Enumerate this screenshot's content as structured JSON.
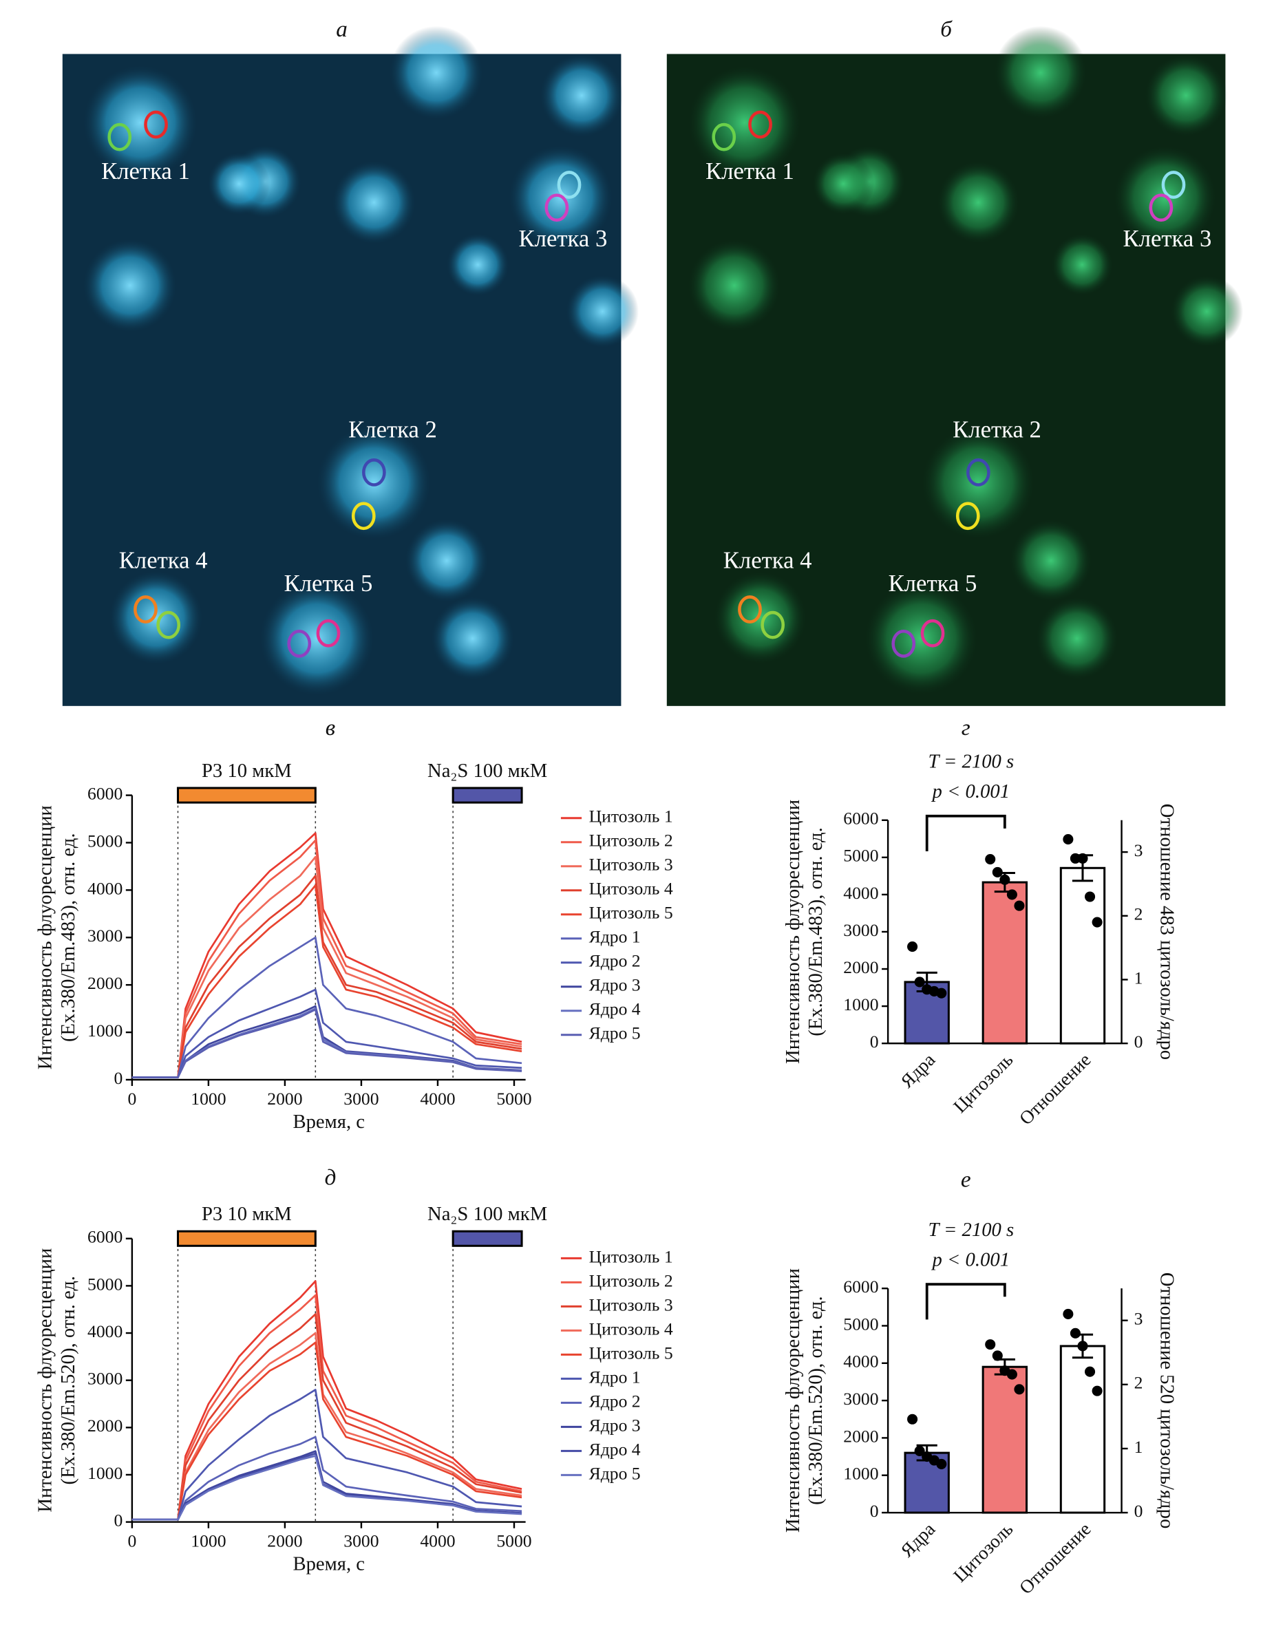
{
  "figure": {
    "panels": [
      {
        "label": "а",
        "cells": [
          "Клетка 1",
          "Клетка 3",
          "Клетка 2",
          "Клетка 4",
          "Клетка 5"
        ]
      },
      {
        "label": "б",
        "cells": [
          "Клетка 1",
          "Клетка 3",
          "Клетка 2",
          "Клетка 4",
          "Клетка 5"
        ]
      }
    ]
  },
  "chart_data": [
    {
      "type": "line",
      "panel_label": "в",
      "y_label": [
        "Интенсивность флуоресценции",
        "(Ex.380/Em.483), отн. ед."
      ],
      "x_label": "Время, с",
      "x": [
        0,
        600,
        700,
        1000,
        1400,
        1800,
        2200,
        2400,
        2500,
        2800,
        3200,
        3600,
        4200,
        4500,
        5100
      ],
      "xlim": [
        0,
        5150
      ],
      "xticks": [
        0,
        1000,
        2000,
        3000,
        4000,
        5000
      ],
      "ylim": [
        0,
        6000
      ],
      "yticks": [
        0,
        1000,
        2000,
        3000,
        4000,
        5000,
        6000
      ],
      "treatments": [
        {
          "label": "Р3 10 мкМ",
          "start": 600,
          "end": 2400,
          "color": "#f28a30"
        },
        {
          "label": "Na₂S 100 мкМ",
          "start": 4200,
          "end": 5100,
          "color": "#5356a8"
        }
      ],
      "series": [
        {
          "name": "Цитозоль 1",
          "color": "#e8392f",
          "values": [
            50,
            50,
            1500,
            2700,
            3700,
            4400,
            4900,
            5200,
            3600,
            2600,
            2300,
            2000,
            1500,
            1000,
            800
          ]
        },
        {
          "name": "Цитозоль 2",
          "color": "#ef5a4a",
          "values": [
            50,
            50,
            1400,
            2500,
            3500,
            4200,
            4700,
            5050,
            3400,
            2400,
            2150,
            1850,
            1400,
            900,
            750
          ]
        },
        {
          "name": "Цитозоль 3",
          "color": "#f06a5a",
          "values": [
            50,
            50,
            1300,
            2300,
            3200,
            3800,
            4300,
            4700,
            3200,
            2250,
            2000,
            1750,
            1300,
            850,
            700
          ]
        },
        {
          "name": "Цитозоль 4",
          "color": "#e0402e",
          "values": [
            50,
            50,
            1100,
            2000,
            2800,
            3400,
            3900,
            4300,
            2900,
            2000,
            1850,
            1600,
            1200,
            800,
            650
          ]
        },
        {
          "name": "Цитозоль 5",
          "color": "#e8442f",
          "values": [
            50,
            50,
            1000,
            1800,
            2600,
            3200,
            3700,
            4100,
            2800,
            1900,
            1750,
            1500,
            1100,
            750,
            600
          ]
        },
        {
          "name": "Ядро 1",
          "color": "#5a62b8",
          "values": [
            50,
            50,
            700,
            1300,
            1900,
            2400,
            2800,
            3000,
            2000,
            1500,
            1350,
            1150,
            800,
            450,
            350
          ]
        },
        {
          "name": "Ядро 2",
          "color": "#4e57b0",
          "values": [
            50,
            50,
            500,
            900,
            1250,
            1500,
            1750,
            1900,
            1200,
            800,
            700,
            600,
            450,
            300,
            250
          ]
        },
        {
          "name": "Ядро 3",
          "color": "#3f459e",
          "values": [
            50,
            50,
            400,
            750,
            1000,
            1200,
            1400,
            1550,
            900,
            600,
            550,
            500,
            400,
            250,
            200
          ]
        },
        {
          "name": "Ядро 4",
          "color": "#6670c0",
          "values": [
            50,
            50,
            400,
            700,
            950,
            1150,
            1350,
            1500,
            850,
            580,
            530,
            480,
            380,
            240,
            190
          ]
        },
        {
          "name": "Ядро 5",
          "color": "#5a5fb2",
          "values": [
            50,
            50,
            380,
            680,
            930,
            1120,
            1320,
            1480,
            800,
            560,
            510,
            460,
            370,
            230,
            180
          ]
        }
      ]
    },
    {
      "type": "bar",
      "panel_label": "г",
      "annotations": [
        "T = 2100 s",
        "p < 0.001"
      ],
      "y_label": [
        "Интенсивность флуоресценции",
        "(Ex.380/Em.483), отн. ед."
      ],
      "y2_label": "Отношение 483 цитозоль/ядро",
      "categories": [
        "Ядра",
        "Цитозоль",
        "Отношение"
      ],
      "values": [
        1650,
        4330,
        2.75
      ],
      "errors": [
        250,
        250,
        0.2
      ],
      "points": [
        [
          2600,
          1650,
          1450,
          1400,
          1350
        ],
        [
          4950,
          4600,
          4400,
          4000,
          3700
        ],
        [
          3.2,
          2.9,
          2.9,
          2.3,
          1.9
        ]
      ],
      "colors": [
        "#5356a8",
        "#f07878",
        "#ffffff"
      ],
      "axes": [
        "y",
        "y",
        "y2"
      ],
      "ylim": [
        0,
        6000
      ],
      "yticks": [
        0,
        1000,
        2000,
        3000,
        4000,
        5000,
        6000
      ],
      "y2lim": [
        0,
        3.5
      ],
      "y2ticks": [
        0,
        1,
        2,
        3
      ],
      "significance": [
        0,
        1
      ]
    },
    {
      "type": "line",
      "panel_label": "д",
      "y_label": [
        "Интенсивность флуоресценции",
        "(Ex.380/Em.520), отн. ед."
      ],
      "x_label": "Время, с",
      "x": [
        0,
        600,
        700,
        1000,
        1400,
        1800,
        2200,
        2400,
        2500,
        2800,
        3200,
        3600,
        4200,
        4500,
        5100
      ],
      "xlim": [
        0,
        5150
      ],
      "xticks": [
        0,
        1000,
        2000,
        3000,
        4000,
        5000
      ],
      "ylim": [
        0,
        6000
      ],
      "yticks": [
        0,
        1000,
        2000,
        3000,
        4000,
        5000,
        6000
      ],
      "treatments": [
        {
          "label": "Р3 10 мкМ",
          "start": 600,
          "end": 2400,
          "color": "#f28a30"
        },
        {
          "label": "Na₂S 100 мкМ",
          "start": 4200,
          "end": 5100,
          "color": "#5356a8"
        }
      ],
      "series": [
        {
          "name": "Цитозоль 1",
          "color": "#e8392f",
          "values": [
            50,
            50,
            1400,
            2500,
            3500,
            4200,
            4750,
            5100,
            3500,
            2400,
            2150,
            1850,
            1350,
            900,
            700
          ]
        },
        {
          "name": "Цитозоль 2",
          "color": "#ef5a4a",
          "values": [
            50,
            50,
            1300,
            2350,
            3300,
            4000,
            4500,
            4800,
            3200,
            2250,
            2000,
            1700,
            1250,
            850,
            650
          ]
        },
        {
          "name": "Цитозоль 3",
          "color": "#e0402e",
          "values": [
            50,
            50,
            1200,
            2150,
            3000,
            3650,
            4100,
            4400,
            3000,
            2100,
            1850,
            1600,
            1150,
            800,
            620
          ]
        },
        {
          "name": "Цитозоль 4",
          "color": "#f06a5a",
          "values": [
            50,
            50,
            1050,
            1950,
            2750,
            3350,
            3750,
            4000,
            2700,
            1900,
            1700,
            1450,
            1050,
            700,
            560
          ]
        },
        {
          "name": "Цитозоль 5",
          "color": "#e8442f",
          "values": [
            50,
            50,
            1000,
            1850,
            2600,
            3200,
            3550,
            3800,
            2600,
            1800,
            1600,
            1400,
            1000,
            650,
            520
          ]
        },
        {
          "name": "Ядро 1",
          "color": "#4e57b0",
          "values": [
            50,
            50,
            650,
            1200,
            1750,
            2250,
            2600,
            2800,
            1800,
            1350,
            1200,
            1050,
            750,
            420,
            330
          ]
        },
        {
          "name": "Ядро 2",
          "color": "#5a62b8",
          "values": [
            50,
            50,
            450,
            850,
            1200,
            1450,
            1650,
            1800,
            1100,
            750,
            650,
            560,
            430,
            280,
            230
          ]
        },
        {
          "name": "Ядро 3",
          "color": "#3f459e",
          "values": [
            50,
            50,
            400,
            700,
            980,
            1180,
            1380,
            1500,
            850,
            600,
            540,
            480,
            380,
            240,
            190
          ]
        },
        {
          "name": "Ядро 4",
          "color": "#454ca6",
          "values": [
            50,
            50,
            380,
            680,
            950,
            1150,
            1350,
            1450,
            800,
            570,
            520,
            460,
            360,
            230,
            180
          ]
        },
        {
          "name": "Ядро 5",
          "color": "#6670c0",
          "values": [
            50,
            50,
            360,
            660,
            920,
            1120,
            1320,
            1400,
            780,
            550,
            500,
            450,
            350,
            220,
            170
          ]
        }
      ]
    },
    {
      "type": "bar",
      "panel_label": "е",
      "annotations": [
        "T = 2100 s",
        "p < 0.001"
      ],
      "y_label": [
        "Интенсивность флуоресценции",
        "(Ex.380/Em.520), отн. ед."
      ],
      "y2_label": "Отношение 520 цитозоль/ядро",
      "categories": [
        "Ядра",
        "Цитозоль",
        "Отношение"
      ],
      "values": [
        1600,
        3900,
        2.6
      ],
      "errors": [
        200,
        200,
        0.18
      ],
      "points": [
        [
          2500,
          1650,
          1500,
          1400,
          1300
        ],
        [
          4500,
          4200,
          3800,
          3700,
          3300
        ],
        [
          3.1,
          2.8,
          2.6,
          2.2,
          1.9
        ]
      ],
      "colors": [
        "#5356a8",
        "#f07878",
        "#ffffff"
      ],
      "axes": [
        "y",
        "y",
        "y2"
      ],
      "ylim": [
        0,
        6000
      ],
      "yticks": [
        0,
        1000,
        2000,
        3000,
        4000,
        5000,
        6000
      ],
      "y2lim": [
        0,
        3.5
      ],
      "y2ticks": [
        0,
        1,
        2,
        3
      ],
      "significance": [
        0,
        1
      ]
    }
  ]
}
